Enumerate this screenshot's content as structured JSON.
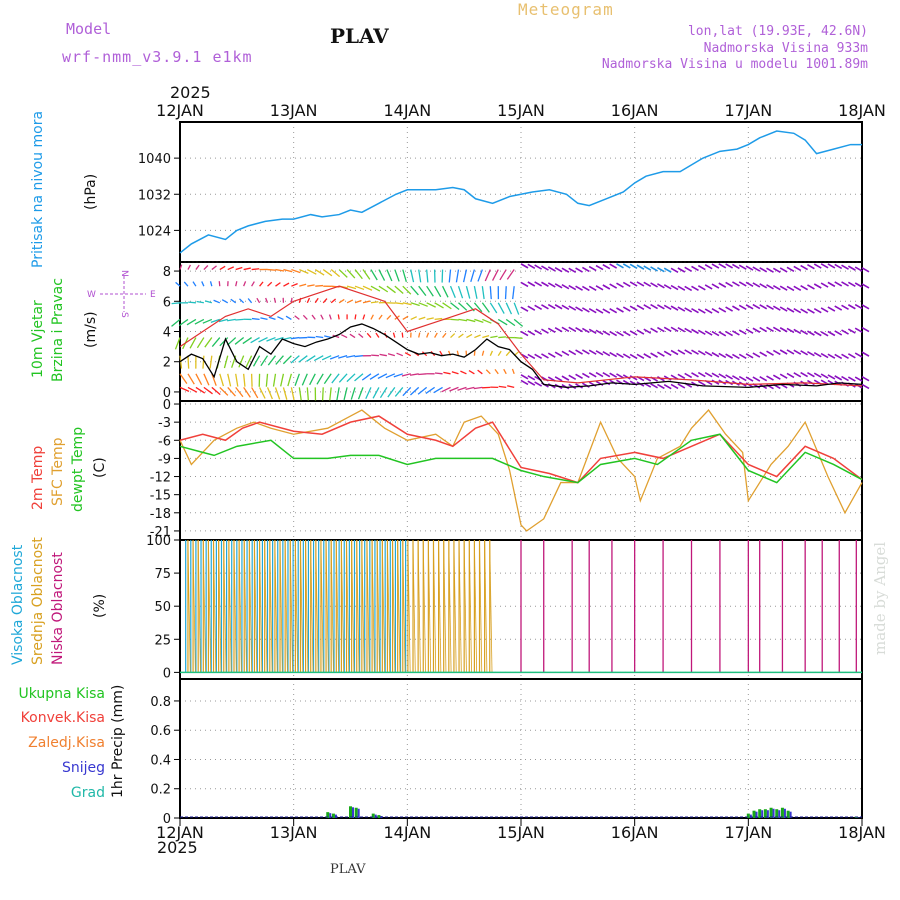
{
  "header": {
    "model_label": "Model",
    "model_name": "wrf-nmm_v3.9.1 e1km",
    "station": "PLAV",
    "meteogram_label": "Meteogram",
    "lonlat": "lon,lat (19.93E, 42.6N)",
    "altitude": "Nadmorska Visina 933m",
    "model_altitude": "Nadmorska Visina u modelu 1001.89m",
    "year_top": "2025",
    "year_bottom": "2025",
    "footer_station": "PLAV",
    "watermark": "made by Angel"
  },
  "colors": {
    "pressure": "#1e9be8",
    "temp2m": "#f0403a",
    "sfc": "#e0a030",
    "dewpt": "#22c422",
    "high_cloud": "#20a8d8",
    "mid_cloud": "#d8a020",
    "low_cloud": "#c0187a",
    "total_precip": "#18a818",
    "snow": "#3838d0",
    "wind_wave": "#8a10c0"
  },
  "chart_data": [
    {
      "type": "line",
      "panel": "pressure",
      "ylabel_main": "Pritisak na nivou mora",
      "ylabel_unit": "(hPa)",
      "ylim": [
        1017,
        1048
      ],
      "yticks": [
        1024,
        1032,
        1040
      ],
      "x_days": [
        "12JAN",
        "13JAN",
        "14JAN",
        "15JAN",
        "16JAN",
        "17JAN",
        "18JAN"
      ],
      "series": [
        {
          "x": [
            0,
            0.1,
            0.25,
            0.4,
            0.5,
            0.6,
            0.75,
            0.9,
            1.0,
            1.15,
            1.25,
            1.4,
            1.5,
            1.6,
            1.75,
            1.9,
            2.0,
            2.1,
            2.25,
            2.4,
            2.5,
            2.6,
            2.75,
            2.9,
            3.0,
            3.1,
            3.25,
            3.4,
            3.5,
            3.6,
            3.75,
            3.9,
            4.0,
            4.1,
            4.25,
            4.4,
            4.5,
            4.6,
            4.75,
            4.9,
            5.0,
            5.1,
            5.25,
            5.4,
            5.5,
            5.6,
            5.75,
            5.9,
            6.0
          ],
          "y": [
            1019,
            1021,
            1023,
            1022,
            1024,
            1025,
            1026,
            1026.5,
            1026.5,
            1027.5,
            1027,
            1027.5,
            1028.5,
            1028,
            1030,
            1032,
            1033,
            1033,
            1033,
            1033.5,
            1033,
            1031,
            1030,
            1031.5,
            1032,
            1032.5,
            1033,
            1032,
            1030,
            1029.5,
            1031,
            1032.5,
            1034.5,
            1036,
            1037,
            1037,
            1038.5,
            1040,
            1041.5,
            1042,
            1043,
            1044.5,
            1046,
            1045.5,
            1044,
            1041,
            1042,
            1043,
            1043
          ]
        }
      ]
    },
    {
      "type": "line",
      "panel": "wind",
      "ylabel_main": "10m Vjetar",
      "ylabel_sub": "Brzina i Pravac",
      "ylabel_unit": "(m/s)",
      "ylim": [
        -0.6,
        8.6
      ],
      "yticks": [
        0,
        2,
        4,
        6,
        8
      ],
      "compass": {
        "n": "N",
        "s": "S",
        "e": "E",
        "w": "W"
      },
      "series": [
        {
          "name": "speed",
          "x": [
            0,
            0.1,
            0.2,
            0.3,
            0.4,
            0.5,
            0.6,
            0.7,
            0.8,
            0.9,
            1.0,
            1.1,
            1.2,
            1.3,
            1.4,
            1.5,
            1.6,
            1.7,
            1.8,
            1.9,
            2.0,
            2.1,
            2.2,
            2.3,
            2.4,
            2.5,
            2.6,
            2.7,
            2.8,
            2.9,
            3.0,
            3.1,
            3.2,
            3.4,
            3.6,
            3.8,
            4.0,
            4.3,
            4.6,
            5.0,
            5.3,
            5.6,
            5.8,
            6.0
          ],
          "y": [
            2.0,
            2.5,
            2.2,
            1.0,
            3.5,
            2.0,
            1.5,
            3.0,
            2.5,
            3.5,
            3.2,
            3.0,
            3.3,
            3.5,
            3.8,
            4.3,
            4.5,
            4.2,
            3.8,
            3.3,
            2.8,
            2.5,
            2.6,
            2.4,
            2.5,
            2.3,
            2.8,
            3.5,
            3.0,
            2.8,
            2.0,
            1.5,
            0.5,
            0.3,
            0.4,
            0.6,
            0.5,
            0.7,
            0.4,
            0.3,
            0.5,
            0.4,
            0.6,
            0.5
          ]
        },
        {
          "name": "gust",
          "x": [
            0,
            0.2,
            0.4,
            0.6,
            0.8,
            1.0,
            1.2,
            1.4,
            1.6,
            1.8,
            2.0,
            2.2,
            2.4,
            2.6,
            2.8,
            3.0,
            3.2,
            3.5,
            4.0,
            4.5,
            5.0,
            5.5,
            6.0
          ],
          "y": [
            3.0,
            4.0,
            5.0,
            5.5,
            5.0,
            6.0,
            6.5,
            7.0,
            6.5,
            6.0,
            4.0,
            4.5,
            5.0,
            5.5,
            4.5,
            2.5,
            0.8,
            0.6,
            1.0,
            0.8,
            0.5,
            0.6,
            0.4
          ]
        }
      ]
    },
    {
      "type": "line",
      "panel": "temperature",
      "ylabel_1": "2m Temp",
      "ylabel_2": "SFC Temp",
      "ylabel_3": "dewpt Temp",
      "ylabel_unit": "(C)",
      "ylim": [
        -22.5,
        0.5
      ],
      "yticks": [
        0,
        -3,
        -6,
        -9,
        -12,
        -15,
        -18,
        -21
      ],
      "series": [
        {
          "name": "2m Temp",
          "x": [
            0,
            0.2,
            0.4,
            0.55,
            0.7,
            1.0,
            1.25,
            1.5,
            1.75,
            2.0,
            2.25,
            2.4,
            2.6,
            2.75,
            3.0,
            3.25,
            3.5,
            3.7,
            4.0,
            4.25,
            4.5,
            4.75,
            5.0,
            5.25,
            5.5,
            5.75,
            6.0
          ],
          "y": [
            -6,
            -5,
            -6,
            -4,
            -3,
            -4.5,
            -5,
            -3,
            -2,
            -5,
            -6,
            -7,
            -4,
            -3,
            -10.5,
            -11.5,
            -13,
            -9,
            -8,
            -9,
            -7,
            -5,
            -10,
            -12,
            -7,
            -9,
            -12.5
          ]
        },
        {
          "name": "SFC Temp",
          "x": [
            0,
            0.1,
            0.3,
            0.5,
            0.65,
            0.8,
            1.0,
            1.3,
            1.5,
            1.6,
            1.8,
            2.0,
            2.25,
            2.4,
            2.5,
            2.65,
            2.8,
            2.9,
            3.0,
            3.05,
            3.2,
            3.35,
            3.5,
            3.6,
            3.7,
            3.85,
            4.0,
            4.05,
            4.2,
            4.4,
            4.5,
            4.65,
            4.8,
            4.95,
            5.0,
            5.2,
            5.35,
            5.5,
            5.7,
            5.85,
            6.0
          ],
          "y": [
            -6,
            -10,
            -6,
            -4,
            -3,
            -4,
            -5,
            -4,
            -2,
            -1,
            -4,
            -6,
            -5,
            -7,
            -3,
            -2,
            -5,
            -11,
            -20,
            -21,
            -19,
            -13,
            -13,
            -8,
            -3,
            -9,
            -12,
            -16,
            -9,
            -7,
            -4,
            -1,
            -5,
            -8,
            -16,
            -10,
            -7,
            -3,
            -12,
            -18,
            -13
          ]
        },
        {
          "name": "dewpt Temp",
          "x": [
            0,
            0.2,
            0.3,
            0.5,
            0.8,
            1.0,
            1.3,
            1.5,
            1.75,
            2.0,
            2.25,
            2.5,
            2.75,
            3.0,
            3.2,
            3.5,
            3.7,
            4.0,
            4.2,
            4.5,
            4.75,
            5.0,
            5.25,
            5.5,
            5.75,
            6.0
          ],
          "y": [
            -7,
            -8,
            -8.5,
            -7,
            -6,
            -9,
            -9,
            -8.5,
            -8.5,
            -10,
            -9,
            -9,
            -9,
            -11,
            -12,
            -13,
            -10,
            -9,
            -10,
            -6,
            -5,
            -11,
            -13,
            -8,
            -10,
            -12.5
          ]
        }
      ]
    },
    {
      "type": "bar",
      "panel": "clouds",
      "ylabel_1": "Visoka Oblacnost",
      "ylabel_2": "Srednja Oblacnost",
      "ylabel_3": "Niska Oblacnost",
      "ylabel_unit": "(%)",
      "ylim": [
        -5,
        100
      ],
      "yticks": [
        0,
        25,
        50,
        75,
        100
      ],
      "high_cloud_until_day": 2.0,
      "mid_cloud_until_day": 2.75,
      "low_cloud_days": [
        3.0,
        3.2,
        3.45,
        3.6,
        3.8,
        4.0,
        4.25,
        4.5,
        4.75,
        5.0,
        5.1,
        5.3,
        5.5,
        5.65,
        5.8,
        5.95
      ]
    },
    {
      "type": "bar",
      "panel": "precipitation",
      "ylabel_unit": "1hr Precip (mm)",
      "ylim": [
        0,
        0.95
      ],
      "yticks": [
        0.0,
        0.2,
        0.4,
        0.6,
        0.8
      ],
      "legend": [
        "Ukupna Kisa",
        "Konvek.Kisa",
        "Zaledj.Kisa",
        "Snijeg",
        "Grad"
      ],
      "bars": [
        {
          "x": 1.3,
          "value": 0.04
        },
        {
          "x": 1.35,
          "value": 0.03
        },
        {
          "x": 1.5,
          "value": 0.08
        },
        {
          "x": 1.55,
          "value": 0.07
        },
        {
          "x": 1.7,
          "value": 0.03
        },
        {
          "x": 1.75,
          "value": 0.02
        },
        {
          "x": 5.0,
          "value": 0.03
        },
        {
          "x": 5.05,
          "value": 0.05
        },
        {
          "x": 5.1,
          "value": 0.06
        },
        {
          "x": 5.15,
          "value": 0.06
        },
        {
          "x": 5.2,
          "value": 0.07
        },
        {
          "x": 5.25,
          "value": 0.06
        },
        {
          "x": 5.3,
          "value": 0.07
        },
        {
          "x": 5.35,
          "value": 0.05
        },
        {
          "x": 5.95,
          "value": 0.01
        }
      ]
    }
  ]
}
